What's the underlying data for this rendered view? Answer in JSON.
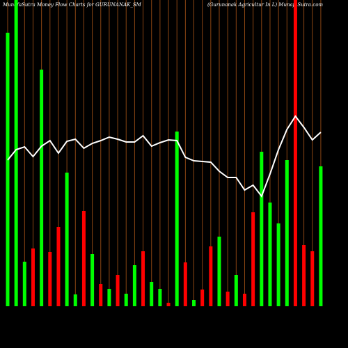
{
  "chart_data": {
    "type": "bar",
    "title": "MunafaSutra  Money Flow  Charts for GURUNANAK_SM",
    "subtitle": "(Gurunanak Agricultur In  L) MunafaSutra.com",
    "ylim": [
      0,
      440
    ],
    "grid": true,
    "grid_color": "#8b4513",
    "background": "#000000",
    "series": [
      {
        "type": "bar",
        "values": [
          393,
          440,
          64,
          83,
          340,
          78,
          114,
          192,
          17,
          137,
          75,
          32,
          25,
          45,
          18,
          59,
          79,
          35,
          25,
          5,
          251,
          63,
          9,
          24,
          86,
          100,
          21,
          45,
          18,
          135,
          222,
          149,
          119,
          210,
          440,
          88,
          79,
          201
        ],
        "colors": [
          "#00ff00",
          "#00ff00",
          "#00ff00",
          "#ff0000",
          "#00ff00",
          "#ff0000",
          "#ff0000",
          "#00ff00",
          "#00ff00",
          "#ff0000",
          "#00ff00",
          "#ff0000",
          "#00ff00",
          "#ff0000",
          "#00ff00",
          "#00ff00",
          "#ff0000",
          "#00ff00",
          "#00ff00",
          "#ff0000",
          "#00ff00",
          "#ff0000",
          "#00ff00",
          "#ff0000",
          "#ff0000",
          "#00ff00",
          "#ff0000",
          "#00ff00",
          "#ff0000",
          "#ff0000",
          "#00ff00",
          "#00ff00",
          "#00ff00",
          "#00ff00",
          "#ff0000",
          "#ff0000",
          "#ff0000",
          "#00ff00"
        ]
      },
      {
        "type": "line",
        "color": "#ffffff",
        "values": [
          210,
          225,
          229,
          215,
          230,
          238,
          220,
          237,
          240,
          227,
          234,
          238,
          243,
          240,
          236,
          236,
          245,
          230,
          235,
          239,
          238,
          214,
          209,
          208,
          207,
          194,
          185,
          185,
          167,
          174,
          158,
          190,
          225,
          254,
          273,
          257,
          239,
          250
        ]
      }
    ]
  }
}
